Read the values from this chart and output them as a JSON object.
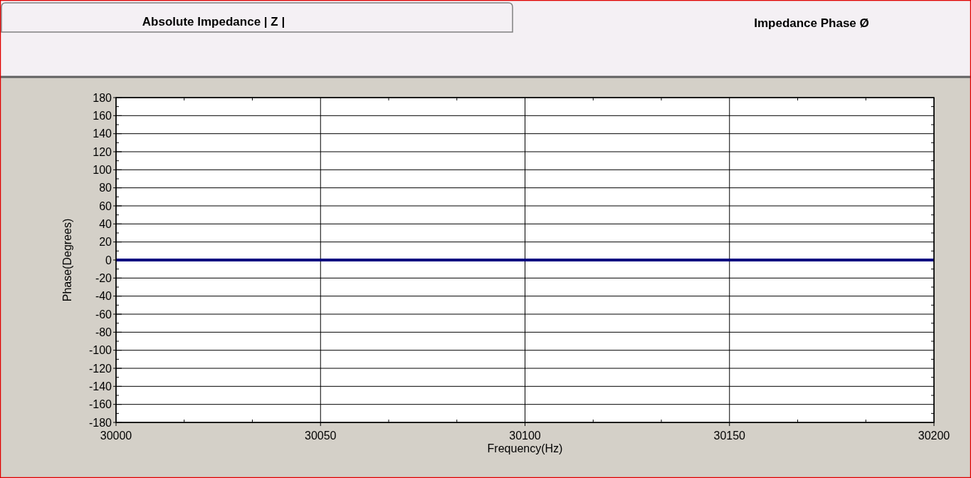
{
  "chart_data": {
    "type": "line",
    "title": "Impedance Phase Ø",
    "annotations": [
      "Absolute Impedance | Z |"
    ],
    "xlabel": "Frequency(Hz)",
    "ylabel": "Phase(Degrees)",
    "x": [
      30000,
      30200
    ],
    "series": [
      {
        "color": "#000080",
        "values": [
          0,
          0
        ]
      }
    ],
    "xlim": [
      30000,
      30200
    ],
    "xticks": [
      30000,
      30050,
      30100,
      30150,
      30200
    ],
    "ylim": [
      -180,
      180
    ],
    "yticks": [
      -180,
      -160,
      -140,
      -120,
      -100,
      -80,
      -60,
      -40,
      -20,
      0,
      20,
      40,
      60,
      80,
      100,
      120,
      140,
      160,
      180
    ],
    "grid": true,
    "marker": "none",
    "line_style": "solid"
  }
}
